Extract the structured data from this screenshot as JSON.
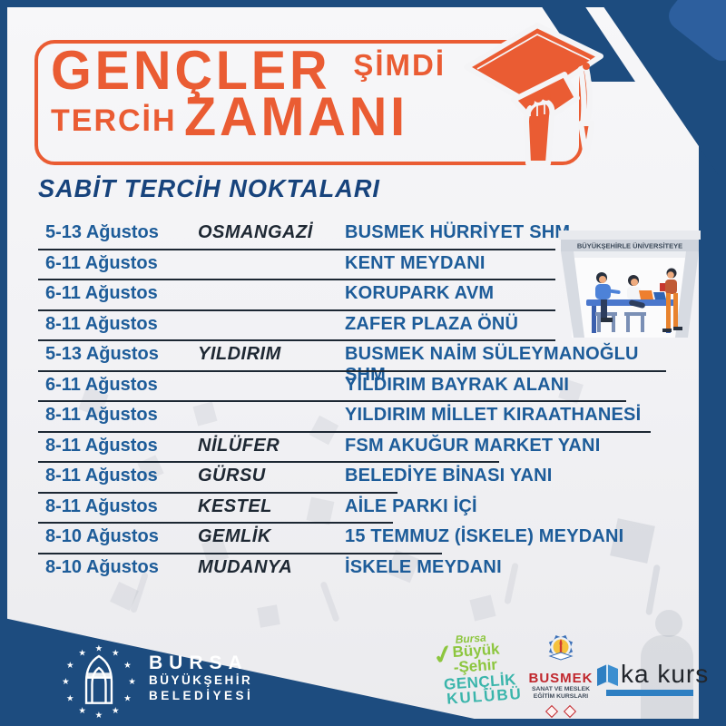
{
  "poster": {
    "header": {
      "line1_big": "GENÇLER",
      "line1_small": "ŞİMDİ",
      "line2_small": "TERCİH",
      "line2_big": "ZAMANI"
    },
    "section_title": "SABİT TERCİH NOKTALARI",
    "table": {
      "rows": [
        {
          "date": "5-13 Ağustos",
          "district": "OSMANGAZİ",
          "location": "BUSMEK HÜRRİYET SHM"
        },
        {
          "date": "6-11 Ağustos",
          "district": "",
          "location": "KENT MEYDANI"
        },
        {
          "date": "6-11 Ağustos",
          "district": "",
          "location": "KORUPARK AVM"
        },
        {
          "date": "8-11 Ağustos",
          "district": "",
          "location": "ZAFER PLAZA ÖNÜ"
        },
        {
          "date": "5-13 Ağustos",
          "district": "YILDIRIM",
          "location": "BUSMEK NAİM SÜLEYMANOĞLU SHM"
        },
        {
          "date": "6-11 Ağustos",
          "district": "",
          "location": "YILDIRIM BAYRAK ALANI"
        },
        {
          "date": "8-11 Ağustos",
          "district": "",
          "location": "YILDIRIM MİLLET KIRAATHANESİ"
        },
        {
          "date": "8-11 Ağustos",
          "district": "NİLÜFER",
          "location": "FSM AKUĞUR MARKET YANI"
        },
        {
          "date": "8-11 Ağustos",
          "district": "GÜRSU",
          "location": "BELEDİYE BİNASI YANI"
        },
        {
          "date": "8-11 Ağustos",
          "district": "KESTEL",
          "location": "AİLE PARKI İÇİ"
        },
        {
          "date": "8-10 Ağustos",
          "district": "GEMLİK",
          "location": "15 TEMMUZ (İSKELE) MEYDANI"
        },
        {
          "date": "8-10 Ağustos",
          "district": "MUDANYA",
          "location": "İSKELE MEYDANI"
        }
      ]
    },
    "tent_banner": "BÜYÜKŞEHİRLE ÜNİVERSİTEYE",
    "footer": {
      "bursa_logo": {
        "line1": "BURSA",
        "line2": "BÜYÜKŞEHİR",
        "line3": "BELEDİYESİ"
      },
      "genclik_logo": {
        "line1": "Bursa",
        "line2": "Büyük",
        "line3": "-Şehir",
        "line4": "GENÇLİK",
        "line5": "KULÜBÜ"
      },
      "busmek_logo": {
        "name": "BUSMEK",
        "sub1": "SANAT VE MESLEK",
        "sub2": "EĞİTİM KURSLARI"
      },
      "eka_logo": {
        "name": "ka kurs"
      }
    },
    "colors": {
      "navy": "#1d4c7f",
      "navy_accent": "#2d5f9e",
      "orange": "#ea5c33",
      "table_blue": "#1d5c99",
      "district_dark": "#1e2833",
      "genclik_green": "#8dc63f",
      "genclik_teal": "#3ab5ab",
      "busmek_red": "#c1272d",
      "eka_blue": "#2e7fc2"
    }
  }
}
